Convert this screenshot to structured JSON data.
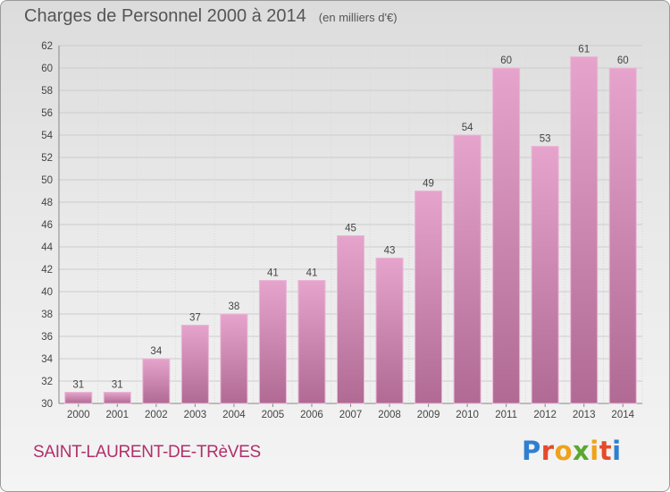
{
  "header": {
    "title": "Charges de Personnel 2000 à 2014",
    "subtitle": "(en milliers d'€)"
  },
  "footer": {
    "commune": "SAINT-LAURENT-DE-TRèVES",
    "logo": "Proxiti"
  },
  "colors": {
    "bar_top": "#e6a4cc",
    "bar_bottom": "#b06a93",
    "bar_edge": "#e9b7d6",
    "axis_text": "#444444",
    "grid": "#cccccc",
    "commune_text": "#b0306a"
  },
  "chart_data": {
    "type": "bar",
    "categories": [
      "2000",
      "2001",
      "2002",
      "2003",
      "2004",
      "2005",
      "2006",
      "2007",
      "2008",
      "2009",
      "2010",
      "2011",
      "2012",
      "2013",
      "2014"
    ],
    "values": [
      31,
      31,
      34,
      37,
      38,
      41,
      41,
      45,
      43,
      49,
      54,
      60,
      53,
      61,
      60
    ],
    "title": "Charges de Personnel 2000 à 2014",
    "subtitle": "(en milliers d'€)",
    "xlabel": "",
    "ylabel": "",
    "ylim": [
      30,
      62
    ],
    "yticks": [
      30,
      32,
      34,
      36,
      38,
      40,
      42,
      44,
      46,
      48,
      50,
      52,
      54,
      56,
      58,
      60,
      62
    ],
    "grid": true,
    "data_labels": true
  }
}
